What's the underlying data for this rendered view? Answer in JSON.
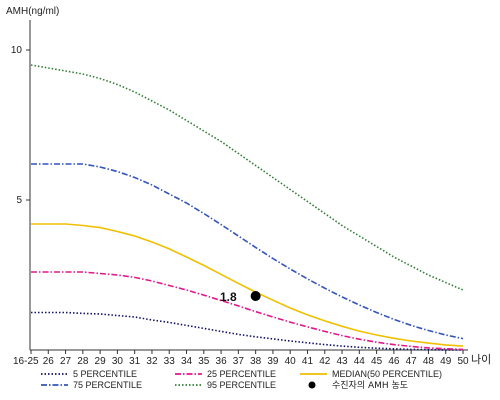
{
  "chart_data": {
    "type": "line",
    "title": "",
    "ylabel": "AMH(ng/ml)",
    "xlabel": "나이",
    "ylim": [
      0,
      11
    ],
    "yticks": [
      5,
      10
    ],
    "x": [
      "16-25",
      "26",
      "27",
      "28",
      "29",
      "30",
      "31",
      "32",
      "33",
      "34",
      "35",
      "36",
      "37",
      "38",
      "39",
      "40",
      "41",
      "42",
      "43",
      "44",
      "45",
      "46",
      "47",
      "48",
      "49",
      "50"
    ],
    "grid": false,
    "legend_position": "bottom",
    "series": [
      {
        "name": "5 PERCENTILE",
        "color": "#111166",
        "dash": "dotted",
        "values": [
          1.25,
          1.25,
          1.25,
          1.22,
          1.2,
          1.15,
          1.1,
          1.0,
          0.92,
          0.82,
          0.72,
          0.62,
          0.52,
          0.44,
          0.37,
          0.3,
          0.24,
          0.18,
          0.13,
          0.09,
          0.06,
          0.04,
          0.02,
          0.01,
          0.0,
          0.0
        ]
      },
      {
        "name": "25 PERCENTILE",
        "color": "#e0188c",
        "dash": "dashdot",
        "values": [
          2.6,
          2.6,
          2.6,
          2.6,
          2.55,
          2.5,
          2.42,
          2.3,
          2.15,
          2.0,
          1.83,
          1.65,
          1.47,
          1.28,
          1.1,
          0.93,
          0.77,
          0.62,
          0.48,
          0.36,
          0.26,
          0.18,
          0.12,
          0.07,
          0.04,
          0.02
        ]
      },
      {
        "name": "MEDIAN(50 PERCENTILE)",
        "color": "#f0c000",
        "dash": "solid",
        "values": [
          4.2,
          4.2,
          4.2,
          4.15,
          4.08,
          3.95,
          3.8,
          3.6,
          3.37,
          3.1,
          2.82,
          2.52,
          2.22,
          1.93,
          1.66,
          1.4,
          1.17,
          0.97,
          0.79,
          0.63,
          0.5,
          0.39,
          0.3,
          0.23,
          0.17,
          0.13
        ]
      },
      {
        "name": "75 PERCENTILE",
        "color": "#3355bb",
        "dash": "dashdot",
        "values": [
          6.2,
          6.2,
          6.2,
          6.2,
          6.1,
          5.95,
          5.75,
          5.5,
          5.2,
          4.9,
          4.55,
          4.18,
          3.8,
          3.42,
          3.05,
          2.7,
          2.37,
          2.06,
          1.77,
          1.5,
          1.25,
          1.02,
          0.82,
          0.65,
          0.5,
          0.38
        ]
      },
      {
        "name": "95 PERCENTILE",
        "color": "#2e7d32",
        "dash": "dotted",
        "values": [
          9.5,
          9.4,
          9.3,
          9.2,
          9.05,
          8.85,
          8.6,
          8.3,
          8.0,
          7.65,
          7.3,
          6.95,
          6.55,
          6.15,
          5.75,
          5.35,
          4.95,
          4.55,
          4.15,
          3.8,
          3.45,
          3.1,
          2.8,
          2.5,
          2.25,
          2.0
        ]
      }
    ],
    "highlight_point": {
      "name": "수진자의 AMH 농도",
      "x": "38",
      "y": 1.8,
      "label": "1.8",
      "color": "#000000"
    },
    "legend": [
      {
        "series": "5 PERCENTILE",
        "label": "5 PERCENTILE"
      },
      {
        "series": "25 PERCENTILE",
        "label": "25 PERCENTILE"
      },
      {
        "series": "MEDIAN(50 PERCENTILE)",
        "label": "MEDIAN(50 PERCENTILE)"
      },
      {
        "series": "75 PERCENTILE",
        "label": "75 PERCENTILE"
      },
      {
        "series": "95 PERCENTILE",
        "label": "95 PERCENTILE"
      },
      {
        "series": "point",
        "label": "수진자의 AMH 농도"
      }
    ]
  }
}
